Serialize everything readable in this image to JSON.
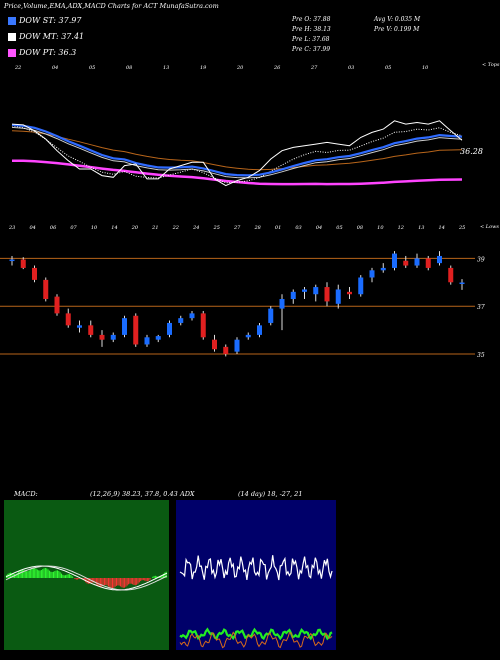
{
  "header": {
    "title": "Price,Volume,EMA,ADX,MACD Charts for ACT MunafaSutra.com"
  },
  "legend": [
    {
      "label": "DOW ST: 37.97",
      "color": "#3a78ff"
    },
    {
      "label": "DOW MT: 37.41",
      "color": "#ffffff"
    },
    {
      "label": "DOW PT: 36.3",
      "color": "#ff55ff"
    }
  ],
  "quote": {
    "open": "Pre   O: 37.88",
    "high": "Pre   H: 38.13",
    "low": "Pre   L: 37.68",
    "close": "Pre   C: 37.99",
    "avg_volume": "Avg V: 0.035 M",
    "prev_volume": "Pre   V: 0.199 M"
  },
  "top_chart": {
    "tag": "< Tops",
    "date_labels": [
      "22",
      "04",
      "05",
      "08",
      "13",
      "19",
      "20",
      "26",
      "27",
      "03",
      "05",
      "10"
    ],
    "last_value_label": "36.28"
  },
  "candle_chart": {
    "tag": "< Lows",
    "date_labels": [
      "23",
      "04",
      "06",
      "07",
      "10",
      "14",
      "20",
      "21",
      "22",
      "24",
      "25",
      "27",
      "28",
      "01",
      "03",
      "04",
      "05",
      "08",
      "10",
      "12",
      "13",
      "14",
      "25"
    ],
    "price_labels": [
      "39",
      "37",
      "35"
    ]
  },
  "macd": {
    "title": "MACD:",
    "params": "(12,26,9) 38.23, 37.8, 0.43"
  },
  "adx": {
    "title": "ADX",
    "params": "(14 day) 18, -27, 21"
  },
  "colors": {
    "blue": "#2f6bff",
    "magenta": "#ff44ff",
    "orange": "#b8651a",
    "up": "#1a6cff",
    "down": "#e02020",
    "green_panel": "#0a5a12",
    "navy_panel": "#00006a"
  },
  "chart_data": {
    "type": "line",
    "title": "Price,Volume,EMA,ADX,MACD Charts for ACT MunafaSutra.com",
    "legend": [
      "DOW ST: 37.97",
      "DOW MT: 37.41",
      "DOW PT: 36.3"
    ],
    "ylim": [
      34.5,
      39.6
    ],
    "y_ticks": [
      39,
      37,
      35
    ],
    "candles": [
      {
        "o": 38.9,
        "h": 39.1,
        "l": 38.7,
        "c": 38.95
      },
      {
        "o": 38.95,
        "h": 39.05,
        "l": 38.55,
        "c": 38.6
      },
      {
        "o": 38.6,
        "h": 38.7,
        "l": 38.0,
        "c": 38.1
      },
      {
        "o": 38.1,
        "h": 38.2,
        "l": 37.2,
        "c": 37.3
      },
      {
        "o": 37.4,
        "h": 37.5,
        "l": 36.6,
        "c": 36.7
      },
      {
        "o": 36.7,
        "h": 36.9,
        "l": 36.1,
        "c": 36.2
      },
      {
        "o": 36.1,
        "h": 36.4,
        "l": 35.9,
        "c": 36.2
      },
      {
        "o": 36.2,
        "h": 36.4,
        "l": 35.7,
        "c": 35.8
      },
      {
        "o": 35.8,
        "h": 36.0,
        "l": 35.3,
        "c": 35.6
      },
      {
        "o": 35.6,
        "h": 35.9,
        "l": 35.5,
        "c": 35.8
      },
      {
        "o": 35.8,
        "h": 36.6,
        "l": 35.7,
        "c": 36.5
      },
      {
        "o": 36.6,
        "h": 36.7,
        "l": 35.3,
        "c": 35.4
      },
      {
        "o": 35.4,
        "h": 35.8,
        "l": 35.3,
        "c": 35.7
      },
      {
        "o": 35.6,
        "h": 35.8,
        "l": 35.5,
        "c": 35.75
      },
      {
        "o": 35.8,
        "h": 36.4,
        "l": 35.7,
        "c": 36.3
      },
      {
        "o": 36.3,
        "h": 36.6,
        "l": 36.2,
        "c": 36.5
      },
      {
        "o": 36.5,
        "h": 36.8,
        "l": 36.4,
        "c": 36.7
      },
      {
        "o": 36.7,
        "h": 36.8,
        "l": 35.6,
        "c": 35.7
      },
      {
        "o": 35.6,
        "h": 35.8,
        "l": 35.1,
        "c": 35.2
      },
      {
        "o": 35.3,
        "h": 35.4,
        "l": 34.9,
        "c": 35.0
      },
      {
        "o": 35.1,
        "h": 35.7,
        "l": 35.0,
        "c": 35.6
      },
      {
        "o": 35.7,
        "h": 35.9,
        "l": 35.6,
        "c": 35.8
      },
      {
        "o": 35.8,
        "h": 36.3,
        "l": 35.7,
        "c": 36.2
      },
      {
        "o": 36.3,
        "h": 37.0,
        "l": 36.2,
        "c": 36.9
      },
      {
        "o": 36.9,
        "h": 37.5,
        "l": 36.0,
        "c": 37.3
      },
      {
        "o": 37.3,
        "h": 37.7,
        "l": 37.1,
        "c": 37.6
      },
      {
        "o": 37.6,
        "h": 37.8,
        "l": 37.3,
        "c": 37.7
      },
      {
        "o": 37.5,
        "h": 37.9,
        "l": 37.2,
        "c": 37.8
      },
      {
        "o": 37.8,
        "h": 38.0,
        "l": 37.0,
        "c": 37.2
      },
      {
        "o": 37.1,
        "h": 37.9,
        "l": 36.9,
        "c": 37.7
      },
      {
        "o": 37.6,
        "h": 37.8,
        "l": 37.3,
        "c": 37.5
      },
      {
        "o": 37.5,
        "h": 38.3,
        "l": 37.4,
        "c": 38.2
      },
      {
        "o": 38.2,
        "h": 38.6,
        "l": 38.0,
        "c": 38.5
      },
      {
        "o": 38.5,
        "h": 38.8,
        "l": 38.4,
        "c": 38.6
      },
      {
        "o": 38.6,
        "h": 39.3,
        "l": 38.5,
        "c": 39.2
      },
      {
        "o": 38.9,
        "h": 39.1,
        "l": 38.6,
        "c": 38.7
      },
      {
        "o": 38.7,
        "h": 39.2,
        "l": 38.6,
        "c": 39.0
      },
      {
        "o": 39.0,
        "h": 39.1,
        "l": 38.5,
        "c": 38.6
      },
      {
        "o": 38.8,
        "h": 39.3,
        "l": 38.7,
        "c": 39.1
      },
      {
        "o": 38.6,
        "h": 38.7,
        "l": 37.9,
        "c": 38.0
      },
      {
        "o": 37.95,
        "h": 38.13,
        "l": 37.68,
        "c": 37.99
      }
    ]
  }
}
